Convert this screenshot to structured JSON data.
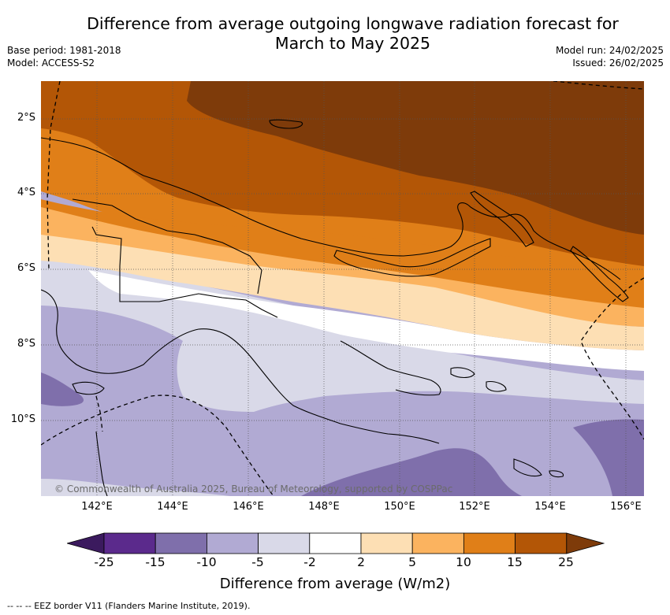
{
  "title": {
    "line1": "Difference from average outgoing longwave radiation forecast for",
    "line2": "March to May 2025"
  },
  "meta_left": [
    "Base period: 1981-2018",
    "Model: ACCESS-S2"
  ],
  "meta_right": [
    "Model run: 24/02/2025",
    "Issued: 26/02/2025"
  ],
  "copyright": "© Commonwealth of Australia 2025, Bureau of Meteorology, supported by COSPPac",
  "latitude_labels": [
    "2°S",
    "4°S",
    "6°S",
    "8°S",
    "10°S"
  ],
  "longitude_labels": [
    "142°E",
    "144°E",
    "146°E",
    "148°E",
    "150°E",
    "152°E",
    "154°E",
    "156°E"
  ],
  "colorbar": {
    "ticks": [
      "-25",
      "-15",
      "-10",
      "-5",
      "-2",
      "2",
      "5",
      "10",
      "15",
      "25"
    ],
    "colors": [
      "#3b1a5e",
      "#5b2a8c",
      "#7f6fab",
      "#b1aad3",
      "#d9d9e8",
      "#ffffff",
      "#fddfb4",
      "#fbb35f",
      "#e07f18",
      "#b35606",
      "#7e3b0a"
    ],
    "label": "Difference from average (W/m2)"
  },
  "footer": "-- -- -- EEZ border V11 (Flanders Marine Institute, 2019)."
}
